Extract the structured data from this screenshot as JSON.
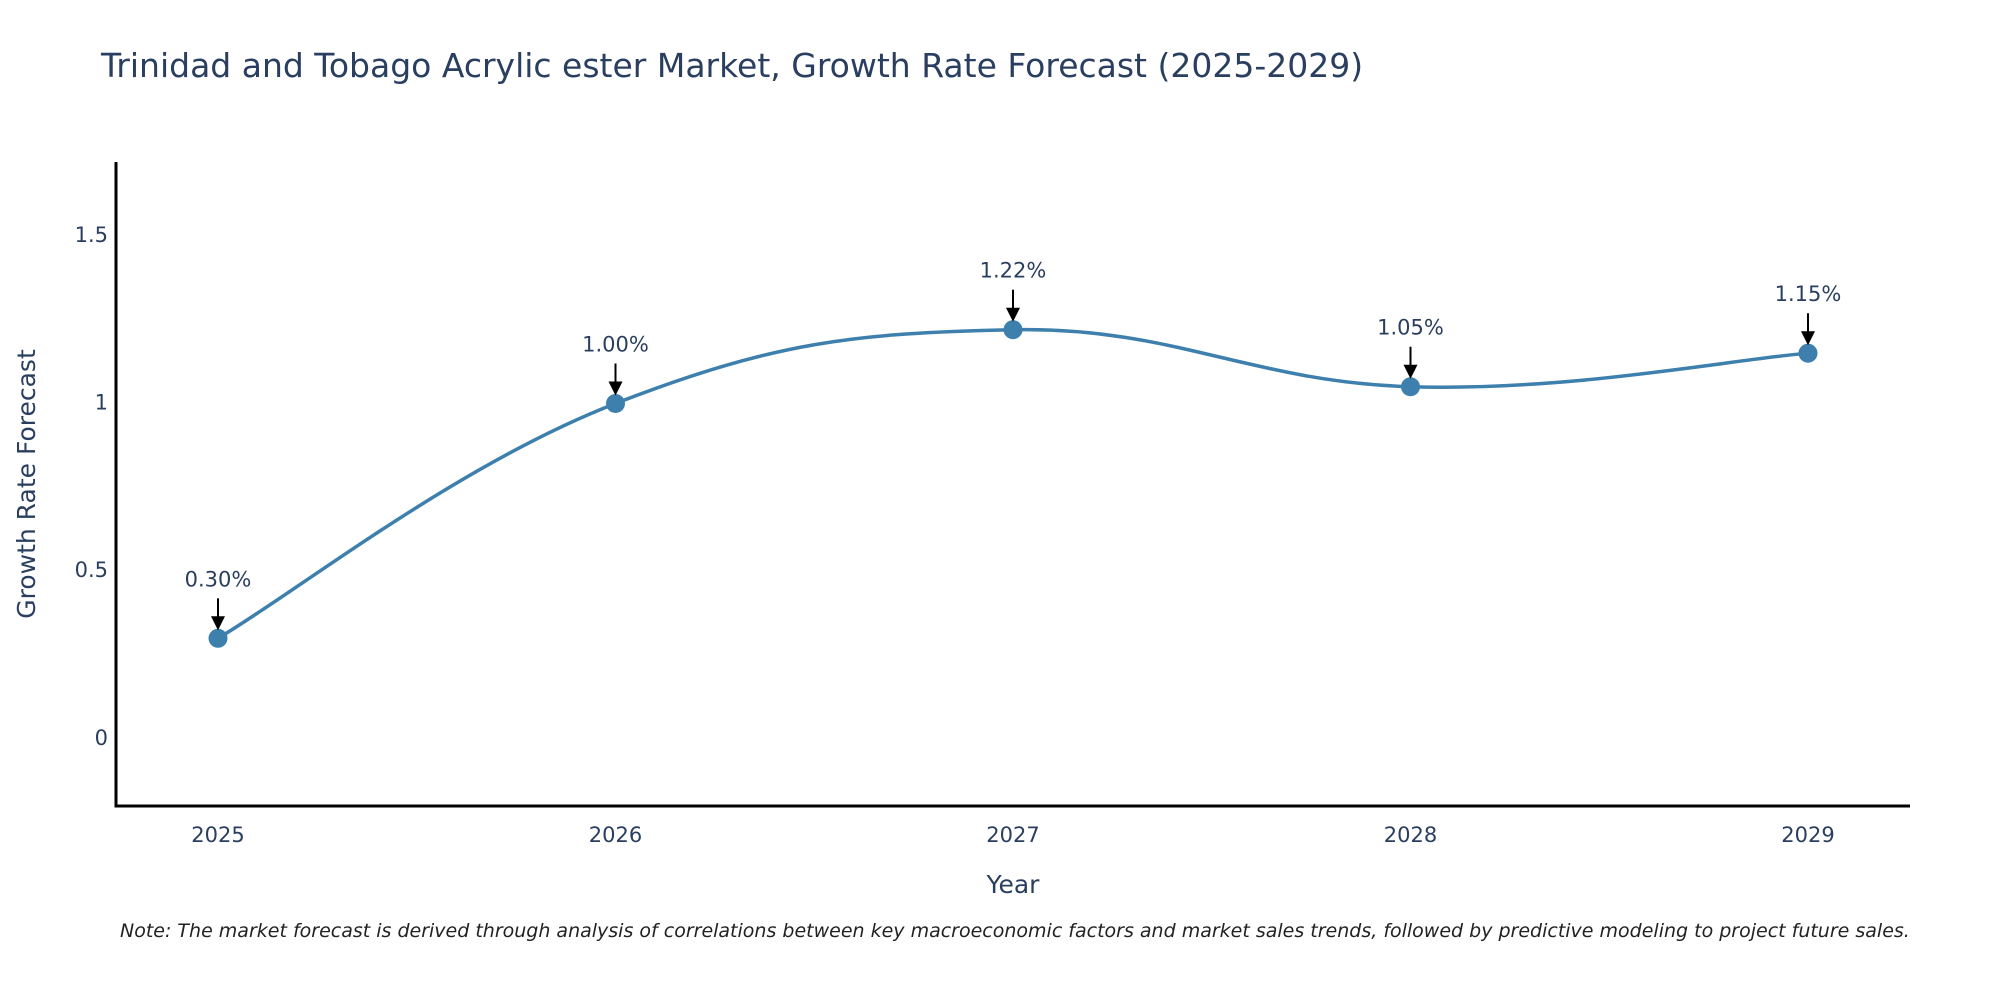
{
  "chart_data": {
    "type": "line",
    "title": "Trinidad and Tobago Acrylic ester Market, Growth Rate Forecast (2025-2029)",
    "xlabel": "Year",
    "ylabel": "Growth Rate Forecast",
    "categories": [
      "2025",
      "2026",
      "2027",
      "2028",
      "2029"
    ],
    "values": [
      0.3,
      1.0,
      1.22,
      1.05,
      1.15
    ],
    "data_labels": [
      "0.30%",
      "1.00%",
      "1.22%",
      "1.05%",
      "1.15%"
    ],
    "ylim": [
      -0.2,
      1.72
    ],
    "yticks": [
      0,
      0.5,
      1,
      1.5
    ],
    "ytick_labels": [
      "0",
      "0.5",
      "1",
      "1.5"
    ],
    "line_shape": "spline",
    "grid": false,
    "note": "Note: The market forecast is derived through analysis of correlations between key macroeconomic factors and market sales trends, followed by predictive modeling to project future sales."
  },
  "colors": {
    "line": "#3d7fad",
    "marker": "#3d7fad",
    "axis": "#000000",
    "text": "#2a3f5f",
    "arrow": "#000000"
  }
}
